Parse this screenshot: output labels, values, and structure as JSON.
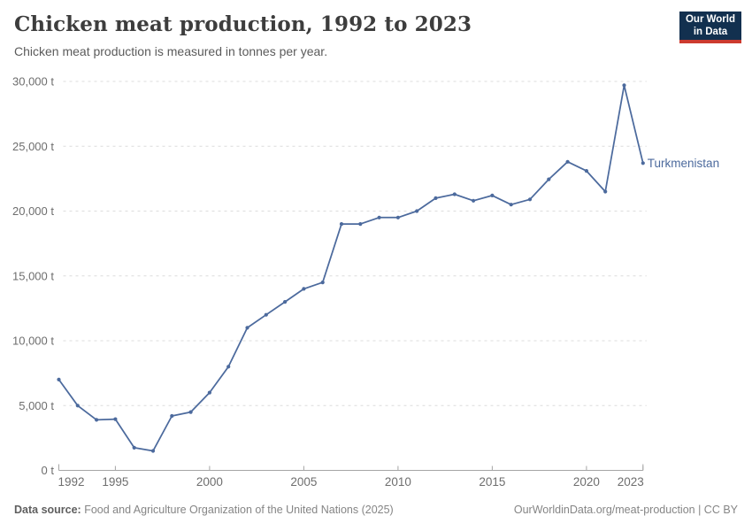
{
  "header": {
    "title": "Chicken meat production, 1992 to 2023",
    "subtitle": "Chicken meat production is measured in tonnes per year."
  },
  "logo": {
    "line1": "Our World",
    "line2": "in Data",
    "bg_color": "#12304f",
    "accent_color": "#cc3b2f"
  },
  "footer": {
    "source_label": "Data source:",
    "source_text": " Food and Agriculture Organization of the United Nations (2025)",
    "link_text": "OurWorldinData.org/meat-production | CC BY"
  },
  "chart_data": {
    "type": "line",
    "title": "Chicken meat production, 1992 to 2023",
    "entity": "Turkmenistan",
    "ylabel": "",
    "xlabel": "",
    "unit": "tonnes",
    "x": [
      1992,
      1993,
      1994,
      1995,
      1996,
      1997,
      1998,
      1999,
      2000,
      2001,
      2002,
      2003,
      2004,
      2005,
      2006,
      2007,
      2008,
      2009,
      2010,
      2011,
      2012,
      2013,
      2014,
      2015,
      2016,
      2017,
      2018,
      2019,
      2020,
      2021,
      2022,
      2023
    ],
    "values": [
      7000,
      5000,
      3900,
      3950,
      1750,
      1500,
      4200,
      4500,
      6000,
      8000,
      11000,
      12000,
      13000,
      14000,
      14500,
      19000,
      19000,
      19500,
      19500,
      20000,
      21000,
      21300,
      20800,
      21200,
      20500,
      20900,
      22450,
      23800,
      23100,
      21500,
      29700,
      23700
    ],
    "ylim": [
      0,
      30000
    ],
    "yticks": [
      0,
      5000,
      10000,
      15000,
      20000,
      25000,
      30000
    ],
    "ytick_labels": [
      "0 t",
      "5,000 t",
      "10,000 t",
      "15,000 t",
      "20,000 t",
      "25,000 t",
      "30,000 t"
    ],
    "xticks": [
      1992,
      1995,
      2000,
      2005,
      2010,
      2015,
      2020,
      2023
    ],
    "grid": true,
    "legend_position": "end-of-line-label",
    "line_color": "#4c6a9d",
    "grid_color": "#dcdcdc",
    "axis_color": "#a5a5a5",
    "tick_label_color": "#6e6e6e"
  }
}
